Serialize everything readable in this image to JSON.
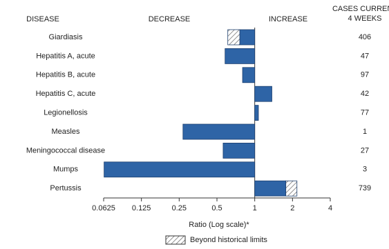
{
  "chart_data": {
    "type": "hbar",
    "headers": {
      "disease": "DISEASE",
      "decrease": "DECREASE",
      "increase": "INCREASE",
      "cases": [
        "CASES CURRENT",
        "4 WEEKS"
      ]
    },
    "categories": [
      "Giardiasis",
      "Hepatitis A, acute",
      "Hepatitis B, acute",
      "Hepatitis C, acute",
      "Legionellosis",
      "Measles",
      "Meningococcal disease",
      "Mumps",
      "Pertussis"
    ],
    "values": [
      0.61,
      0.58,
      0.8,
      1.37,
      1.07,
      0.268,
      0.56,
      0.063,
      2.17
    ],
    "historical_limit": [
      0.76,
      null,
      null,
      null,
      null,
      null,
      null,
      null,
      1.77
    ],
    "cases": [
      406,
      47,
      97,
      42,
      77,
      1,
      27,
      3,
      739
    ],
    "color": "#2e64a6",
    "xlim": [
      0.0625,
      4
    ],
    "xticks": [
      0.0625,
      0.125,
      0.25,
      0.5,
      1,
      2,
      4
    ],
    "log_scale": true,
    "xlabel": "Ratio (Log scale)*",
    "legend": "Beyond historical limits"
  }
}
